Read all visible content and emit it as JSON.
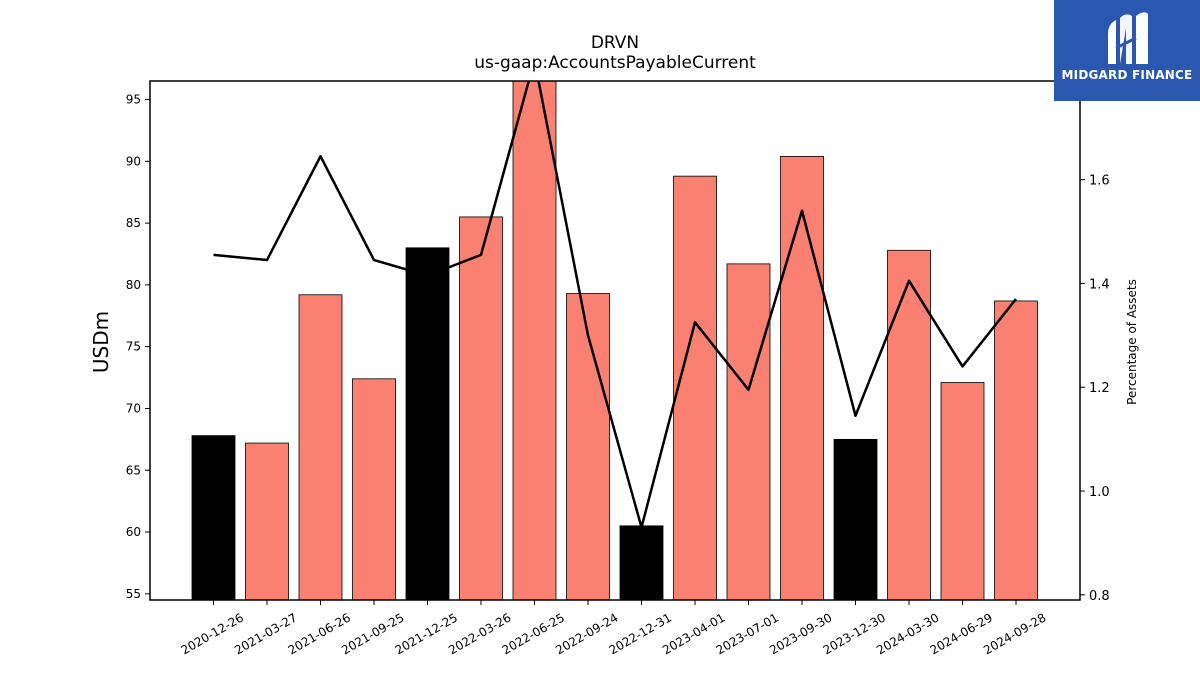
{
  "chart_data": {
    "type": "bar",
    "title": "DRVN",
    "subtitle": "us-gaap:AccountsPayableCurrent",
    "ylabel": "USDm",
    "ylabel_right": "Percentage of Assets",
    "categories": [
      "2020-12-26",
      "2021-03-27",
      "2021-06-26",
      "2021-09-25",
      "2021-12-25",
      "2022-03-26",
      "2022-06-25",
      "2022-09-24",
      "2022-12-31",
      "2023-04-01",
      "2023-07-01",
      "2023-09-30",
      "2023-12-30",
      "2024-03-30",
      "2024-06-29",
      "2024-09-28"
    ],
    "values": [
      67.8,
      67.2,
      79.2,
      72.4,
      83.0,
      85.5,
      97.0,
      79.3,
      60.5,
      88.8,
      81.7,
      90.4,
      67.5,
      82.8,
      72.1,
      78.7
    ],
    "bar_colors": [
      "#000000",
      "#fa8072",
      "#fa8072",
      "#fa8072",
      "#000000",
      "#fa8072",
      "#fa8072",
      "#fa8072",
      "#000000",
      "#fa8072",
      "#fa8072",
      "#fa8072",
      "#000000",
      "#fa8072",
      "#fa8072",
      "#fa8072"
    ],
    "line_values": [
      1.455,
      1.445,
      1.645,
      1.445,
      1.415,
      1.455,
      1.83,
      1.3,
      0.93,
      1.325,
      1.195,
      1.54,
      1.145,
      1.405,
      1.24,
      1.37
    ],
    "ylim": [
      54.5,
      96.5
    ],
    "ylim_right": [
      0.79,
      1.79
    ],
    "yticks_left": [
      55,
      60,
      65,
      70,
      75,
      80,
      85,
      90,
      95
    ],
    "yticks_right": [
      0.8,
      1.0,
      1.2,
      1.4,
      1.6
    ],
    "grid": false
  },
  "logo": {
    "text": "MIDGARD FINANCE",
    "color": "#2a57b0"
  }
}
